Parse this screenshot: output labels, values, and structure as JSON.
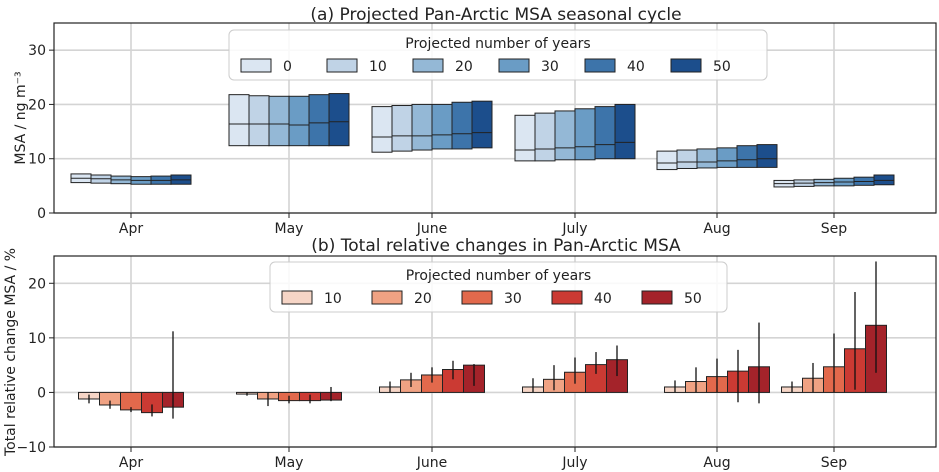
{
  "chart_data": [
    {
      "type": "box",
      "title": "(a) Projected Pan-Arctic MSA seasonal cycle",
      "ylabel": "MSA / ng m⁻³",
      "ylim": [
        0,
        35
      ],
      "yticks": [
        0,
        10,
        20,
        30
      ],
      "categories": [
        "Apr",
        "May",
        "June",
        "July",
        "Aug",
        "Sep"
      ],
      "legend": {
        "title": "Projected number of years",
        "placement": "top-center",
        "entries": [
          "0",
          "10",
          "20",
          "30",
          "40",
          "50"
        ]
      },
      "colors": [
        "#dbe6f2",
        "#c0d3e6",
        "#94b8d6",
        "#6a9cc5",
        "#3d74aa",
        "#1c4e8c"
      ],
      "series": [
        {
          "name": "0",
          "boxes": [
            [
              5.6,
              6.4,
              7.2
            ],
            [
              12.4,
              16.4,
              21.8
            ],
            [
              11.2,
              14.0,
              19.6
            ],
            [
              9.6,
              11.6,
              18.0
            ],
            [
              8.0,
              9.2,
              11.4
            ],
            [
              4.8,
              5.4,
              6.0
            ]
          ]
        },
        {
          "name": "10",
          "boxes": [
            [
              5.5,
              6.3,
              7.0
            ],
            [
              12.4,
              16.4,
              21.6
            ],
            [
              11.4,
              14.2,
              19.8
            ],
            [
              9.6,
              11.8,
              18.4
            ],
            [
              8.2,
              9.4,
              11.6
            ],
            [
              4.9,
              5.5,
              6.1
            ]
          ]
        },
        {
          "name": "20",
          "boxes": [
            [
              5.4,
              6.1,
              6.8
            ],
            [
              12.4,
              16.4,
              21.5
            ],
            [
              11.6,
              14.2,
              20.0
            ],
            [
              9.8,
              12.0,
              18.8
            ],
            [
              8.3,
              9.4,
              11.8
            ],
            [
              5.0,
              5.6,
              6.2
            ]
          ]
        },
        {
          "name": "30",
          "boxes": [
            [
              5.3,
              6.0,
              6.7
            ],
            [
              12.4,
              16.2,
              21.5
            ],
            [
              11.8,
              14.4,
              20.0
            ],
            [
              9.8,
              12.2,
              19.2
            ],
            [
              8.4,
              9.6,
              12.0
            ],
            [
              5.0,
              5.7,
              6.4
            ]
          ]
        },
        {
          "name": "40",
          "boxes": [
            [
              5.3,
              6.0,
              6.8
            ],
            [
              12.4,
              16.6,
              21.8
            ],
            [
              11.8,
              14.6,
              20.4
            ],
            [
              10.0,
              12.6,
              19.6
            ],
            [
              8.4,
              9.8,
              12.4
            ],
            [
              5.1,
              5.8,
              6.6
            ]
          ]
        },
        {
          "name": "50",
          "boxes": [
            [
              5.3,
              6.1,
              7.0
            ],
            [
              12.4,
              16.8,
              22.0
            ],
            [
              12.0,
              14.8,
              20.6
            ],
            [
              10.0,
              13.0,
              20.0
            ],
            [
              8.4,
              10.0,
              12.6
            ],
            [
              5.2,
              6.0,
              7.0
            ]
          ]
        }
      ]
    },
    {
      "type": "bar",
      "title": "(b) Total relative changes in Pan-Arctic MSA",
      "ylabel": "Total relative change MSA / %",
      "ylim": [
        -10,
        25
      ],
      "yticks": [
        -10,
        0,
        10,
        20
      ],
      "categories": [
        "Apr",
        "May",
        "June",
        "July",
        "Aug",
        "Sep"
      ],
      "legend": {
        "title": "Projected number of years",
        "placement": "top-center",
        "entries": [
          "10",
          "20",
          "30",
          "40",
          "50"
        ]
      },
      "colors": [
        "#f6d5c6",
        "#f0a283",
        "#e2694c",
        "#cb3a33",
        "#a4232a"
      ],
      "series": [
        {
          "name": "10",
          "values": [
            -1.2,
            -0.3,
            1.0,
            1.0,
            1.0,
            1.0
          ],
          "err_low": [
            -2.0,
            -0.6,
            0.0,
            0.0,
            0.0,
            0.0
          ],
          "err_high": [
            -0.4,
            0.0,
            2.0,
            2.6,
            2.2,
            2.0
          ]
        },
        {
          "name": "20",
          "values": [
            -2.3,
            -1.2,
            2.3,
            2.4,
            2.0,
            2.6
          ],
          "err_low": [
            -3.0,
            -2.5,
            1.0,
            0.4,
            0.0,
            0.0
          ],
          "err_high": [
            -1.5,
            0.0,
            3.6,
            5.0,
            4.6,
            5.4
          ]
        },
        {
          "name": "30",
          "values": [
            -3.2,
            -1.5,
            3.2,
            3.7,
            2.9,
            4.7
          ],
          "err_low": [
            -3.6,
            -2.0,
            1.8,
            1.6,
            0.0,
            0.0
          ],
          "err_high": [
            -2.7,
            -0.6,
            4.6,
            6.4,
            6.2,
            10.8
          ]
        },
        {
          "name": "40",
          "values": [
            -3.7,
            -1.5,
            4.2,
            5.1,
            3.9,
            8.0
          ],
          "err_low": [
            -4.4,
            -2.0,
            2.4,
            3.4,
            -1.8,
            0.5
          ],
          "err_high": [
            -2.2,
            -0.4,
            5.8,
            7.4,
            7.8,
            18.4
          ]
        },
        {
          "name": "50",
          "values": [
            -2.7,
            -1.4,
            5.0,
            6.0,
            4.7,
            12.3
          ],
          "err_low": [
            -4.8,
            -1.6,
            1.2,
            3.0,
            -2.0,
            3.6
          ],
          "err_high": [
            11.2,
            1.0,
            5.2,
            8.6,
            12.8,
            24.0
          ]
        }
      ]
    }
  ]
}
